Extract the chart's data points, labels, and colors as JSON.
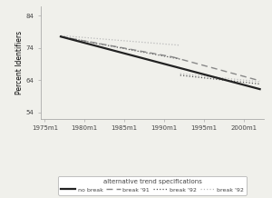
{
  "ylabel": "Percent Identifiers",
  "yticks": [
    54,
    64,
    74,
    84
  ],
  "xtick_labels": [
    "1975m1",
    "1980m1",
    "1985m1",
    "1990m1",
    "1995m1",
    "2000m1"
  ],
  "xtick_values": [
    1975,
    1980,
    1985,
    1990,
    1995,
    2000
  ],
  "xlim": [
    1974.5,
    2002.5
  ],
  "ylim": [
    52,
    87
  ],
  "legend_title": "alternative trend specifications",
  "legend_entries": [
    "no break",
    "break '91",
    "break '92",
    "break '92"
  ],
  "no_break": {
    "x": [
      1977,
      2002
    ],
    "y": [
      77.5,
      61.2
    ],
    "color": "#222222",
    "lw": 1.6,
    "ls": "solid"
  },
  "break91": {
    "segments": [
      {
        "x": [
          1977,
          1991
        ],
        "y": [
          77.5,
          71.2
        ]
      },
      {
        "x": [
          1991,
          2002
        ],
        "y": [
          71.2,
          63.8
        ]
      }
    ],
    "color": "#888888",
    "lw": 1.0,
    "ls": "dashed"
  },
  "break92_dark": {
    "segments": [
      {
        "x": [
          1977,
          1992
        ],
        "y": [
          77.5,
          70.5
        ]
      },
      {
        "x": [
          1992,
          2002
        ],
        "y": [
          65.5,
          62.8
        ]
      }
    ],
    "color": "#555555",
    "lw": 0.9,
    "ls": "dotted"
  },
  "break92_light": {
    "segments": [
      {
        "x": [
          1977,
          1992
        ],
        "y": [
          77.8,
          74.8
        ]
      },
      {
        "x": [
          1992,
          2002
        ],
        "y": [
          66.0,
          63.5
        ]
      }
    ],
    "color": "#bbbbbb",
    "lw": 0.9,
    "ls": "dotted"
  },
  "background_color": "#f0f0eb",
  "plot_bg": "#f0f0eb",
  "spine_color": "#aaaaaa"
}
